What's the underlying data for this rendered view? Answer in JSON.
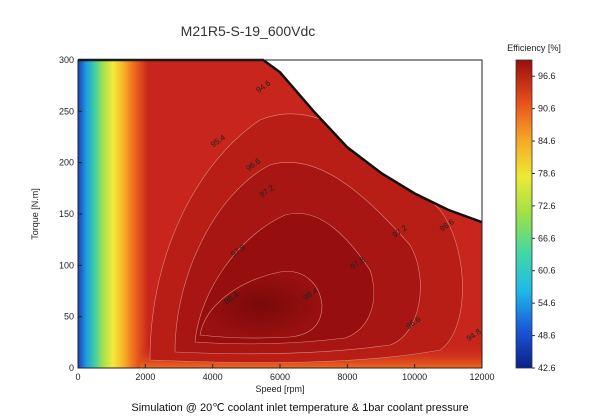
{
  "chart_data": {
    "type": "heatmap",
    "title": "M21R5-S-19_600Vdc",
    "xlabel": "Speed [rpm]",
    "ylabel": "Torque [N.m]",
    "xlim": [
      0,
      12000
    ],
    "ylim": [
      0,
      300
    ],
    "xticks": [
      "0",
      "2000",
      "4000",
      "6000",
      "8000",
      "10000",
      "12000"
    ],
    "yticks": [
      "0",
      "50",
      "100",
      "150",
      "200",
      "250",
      "300"
    ],
    "colorbar": {
      "title": "Efficiency [%]",
      "range": [
        42.6,
        99.6
      ],
      "ticks": [
        "96.6",
        "90.6",
        "84.6",
        "78.6",
        "72.6",
        "66.6",
        "60.6",
        "54.6",
        "48.6",
        "42.6"
      ]
    },
    "max_torque_envelope": {
      "x": [
        0,
        5500,
        6000,
        7000,
        8000,
        9000,
        10000,
        11000,
        12000
      ],
      "y": [
        300,
        300,
        288,
        250,
        215,
        190,
        170,
        154,
        142
      ]
    },
    "contour_labels": [
      {
        "value": "94.6",
        "x": 5550,
        "y": 272
      },
      {
        "value": "95.4",
        "x": 4200,
        "y": 219
      },
      {
        "value": "96.6",
        "x": 5250,
        "y": 196
      },
      {
        "value": "97.2",
        "x": 5650,
        "y": 170
      },
      {
        "value": "97.8",
        "x": 4800,
        "y": 112
      },
      {
        "value": "98.4",
        "x": 4600,
        "y": 66
      },
      {
        "value": "98.4",
        "x": 6950,
        "y": 70
      },
      {
        "value": "97.8",
        "x": 8350,
        "y": 100
      },
      {
        "value": "97.2",
        "x": 9600,
        "y": 131
      },
      {
        "value": "96.6",
        "x": 11000,
        "y": 137
      },
      {
        "value": "96.6",
        "x": 10000,
        "y": 42
      },
      {
        "value": "94.8",
        "x": 11800,
        "y": 30
      }
    ],
    "grid": false,
    "legend": "colorbar-right"
  },
  "footer_note": "Simulation @ 20℃ coolant inlet temperature & 1bar coolant pressure",
  "colors": {
    "background_red": "#c8261c",
    "deep_red": "#7d0b0b",
    "envelope": "#111111"
  }
}
